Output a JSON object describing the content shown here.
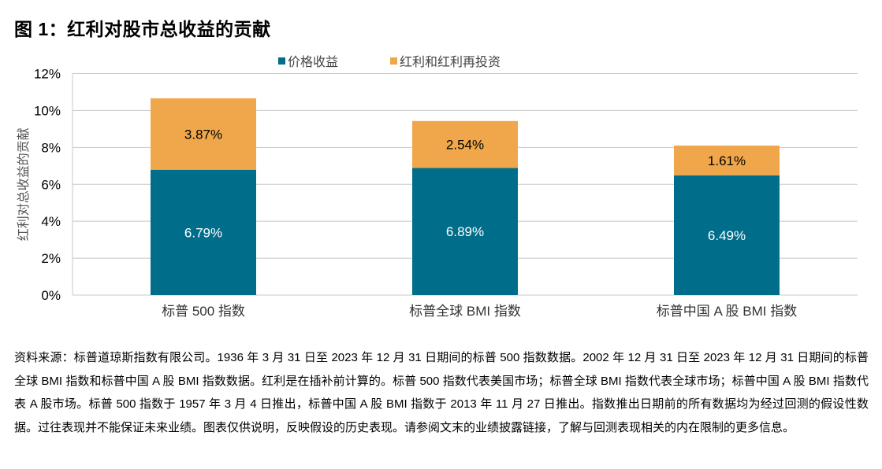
{
  "title": "图 1：红利对股市总收益的贡献",
  "chart_data": {
    "type": "bar",
    "stacked": true,
    "title": "",
    "xlabel": "",
    "ylabel": "红利对总收益的贡献",
    "ylim": [
      0,
      12
    ],
    "yticks": [
      "0%",
      "2%",
      "4%",
      "6%",
      "8%",
      "10%",
      "12%"
    ],
    "ytick_values": [
      0,
      2,
      4,
      6,
      8,
      10,
      12
    ],
    "grid": true,
    "legend_position": "top",
    "categories": [
      "标普 500 指数",
      "标普全球 BMI 指数",
      "标普中国 A 股 BMI 指数"
    ],
    "series": [
      {
        "name": "价格收益",
        "color": "#006E8A",
        "values": [
          6.79,
          6.89,
          6.49
        ],
        "labels": [
          "6.79%",
          "6.89%",
          "6.49%"
        ],
        "label_color": "#ffffff"
      },
      {
        "name": "红利和红利再投资",
        "color": "#F0A64A",
        "values": [
          3.87,
          2.54,
          1.61
        ],
        "labels": [
          "3.87%",
          "2.54%",
          "1.61%"
        ],
        "label_color": "#000000"
      }
    ]
  },
  "footnote": "资料来源：标普道琼斯指数有限公司。1936 年 3 月 31 日至 2023 年 12 月 31 日期间的标普 500 指数数据。2002 年 12 月 31 日至 2023 年 12 月 31 日期间的标普全球 BMI 指数和标普中国 A 股 BMI 指数数据。红利是在插补前计算的。标普 500 指数代表美国市场；标普全球 BMI 指数代表全球市场；标普中国 A 股 BMI 指数代表 A 股市场。标普 500 指数于 1957 年 3 月 4 日推出，标普中国 A 股 BMI 指数于 2013 年 11 月 27 日推出。指数推出日期前的所有数据均为经过回测的假设性数据。过往表现并不能保证未来业绩。图表仅供说明，反映假设的历史表现。请参阅文末的业绩披露链接，了解与回测表现相关的内在限制的更多信息。"
}
